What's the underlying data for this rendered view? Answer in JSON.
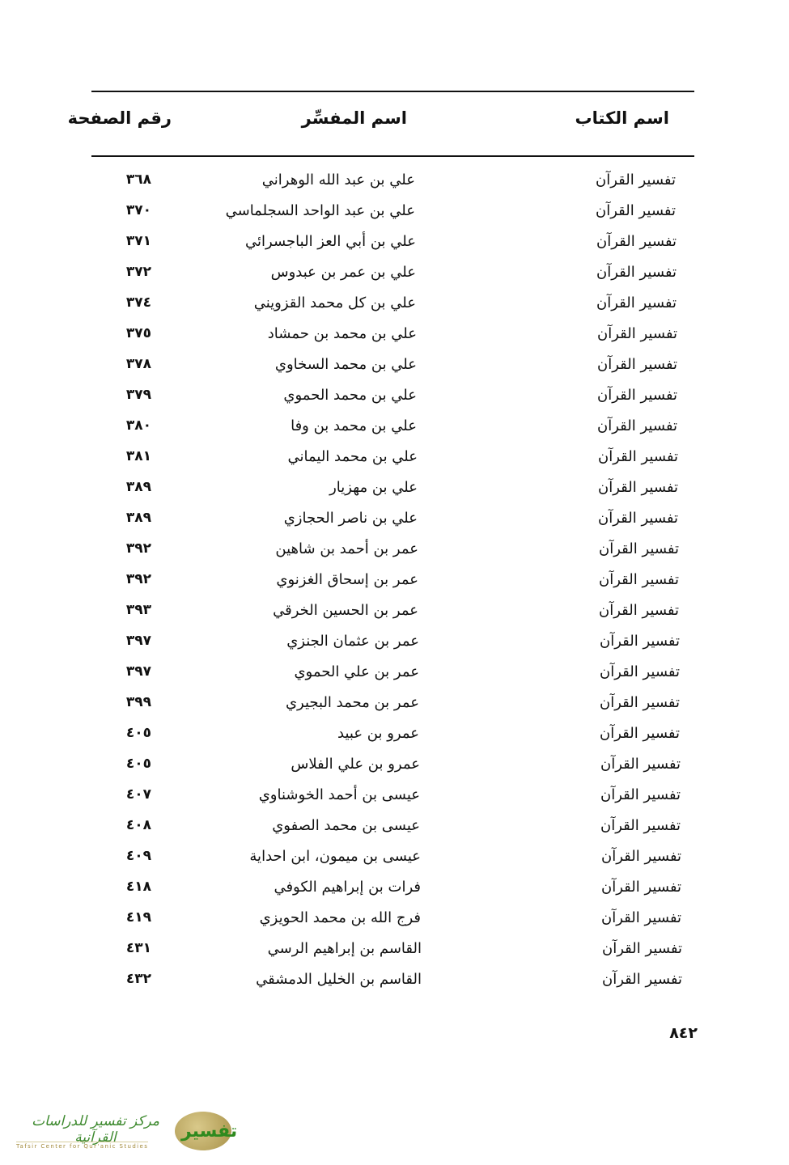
{
  "table": {
    "headers": {
      "book": "اسم الكتاب",
      "name": "اسم المفسِّر",
      "page": "رقم الصفحة"
    },
    "rows": [
      {
        "book": "تفسير القرآن",
        "name": "علي بن عبد الله الوهراني",
        "page": "٣٦٨"
      },
      {
        "book": "تفسير القرآن",
        "name": "علي بن عبد الواحد السجلماسي",
        "page": "٣٧٠"
      },
      {
        "book": "تفسير القرآن",
        "name": "علي بن أبي العز الباجسرائي",
        "page": "٣٧١"
      },
      {
        "book": "تفسير القرآن",
        "name": "علي بن عمر بن عبدوس",
        "page": "٣٧٢"
      },
      {
        "book": "تفسير القرآن",
        "name": "علي بن كل محمد القزويني",
        "page": "٣٧٤"
      },
      {
        "book": "تفسير القرآن",
        "name": "علي بن محمد بن حمشاد",
        "page": "٣٧٥"
      },
      {
        "book": "تفسير القرآن",
        "name": "علي بن محمد السخاوي",
        "page": "٣٧٨"
      },
      {
        "book": "تفسير القرآن",
        "name": "علي بن محمد الحموي",
        "page": "٣٧٩"
      },
      {
        "book": "تفسير القرآن",
        "name": "علي بن محمد بن وفا",
        "page": "٣٨٠"
      },
      {
        "book": "تفسير القرآن",
        "name": "علي بن محمد اليماني",
        "page": "٣٨١"
      },
      {
        "book": "تفسير القرآن",
        "name": "علي بن مهزيار",
        "page": "٣٨٩"
      },
      {
        "book": "تفسير القرآن",
        "name": "علي بن ناصر الحجازي",
        "page": "٣٨٩"
      },
      {
        "book": "تفسير القرآن",
        "name": "عمر بن أحمد بن شاهين",
        "page": "٣٩٢"
      },
      {
        "book": "تفسير القرآن",
        "name": "عمر بن إسحاق الغزنوي",
        "page": "٣٩٢"
      },
      {
        "book": "تفسير القرآن",
        "name": "عمر بن الحسين الخرقي",
        "page": "٣٩٣"
      },
      {
        "book": "تفسير القرآن",
        "name": "عمر بن عثمان الجنزي",
        "page": "٣٩٧"
      },
      {
        "book": "تفسير القرآن",
        "name": "عمر بن علي الحموي",
        "page": "٣٩٧"
      },
      {
        "book": "تفسير القرآن",
        "name": "عمر بن محمد البجيري",
        "page": "٣٩٩"
      },
      {
        "book": "تفسير القرآن",
        "name": "عمرو بن عبيد",
        "page": "٤٠٥"
      },
      {
        "book": "تفسير القرآن",
        "name": "عمرو بن علي الفلاس",
        "page": "٤٠٥"
      },
      {
        "book": "تفسير القرآن",
        "name": "عيسى بن أحمد الخوشناوي",
        "page": "٤٠٧"
      },
      {
        "book": "تفسير القرآن",
        "name": "عيسى بن محمد الصفوي",
        "page": "٤٠٨"
      },
      {
        "book": "تفسير القرآن",
        "name": "عيسى بن ميمون، ابن احداية",
        "page": "٤٠٩"
      },
      {
        "book": "تفسير القرآن",
        "name": "فرات بن إبراهيم الكوفي",
        "page": "٤١٨"
      },
      {
        "book": "تفسير القرآن",
        "name": "فرج الله بن محمد الحويزي",
        "page": "٤١٩"
      },
      {
        "book": "تفسير القرآن",
        "name": "القاسم بن إبراهيم الرسي",
        "page": "٤٣١"
      },
      {
        "book": "تفسير القرآن",
        "name": "القاسم بن الخليل الدمشقي",
        "page": "٤٣٢"
      }
    ]
  },
  "folio": "٨٤٢",
  "logo": {
    "arabic": "مركز تفسير للدراسات القرآنية",
    "english": "Tafsir Center for Qur'anic Studies",
    "mark": "تفسير"
  }
}
